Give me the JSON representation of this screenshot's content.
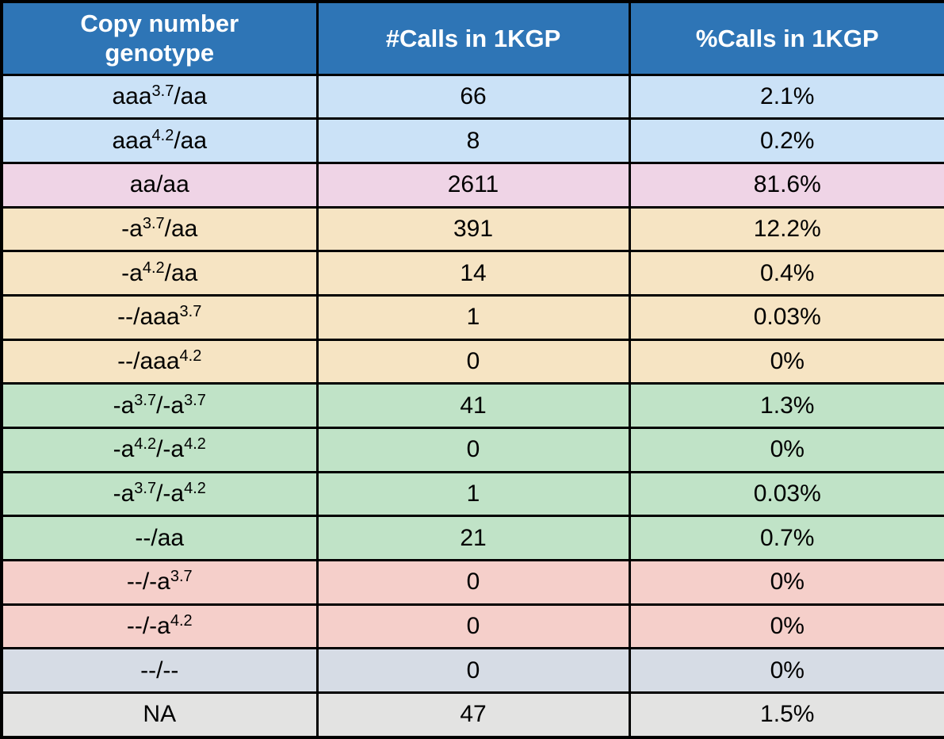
{
  "chart_data": {
    "type": "table",
    "columns": [
      "Copy number genotype",
      "#Calls in 1KGP",
      "%Calls in 1KGP"
    ],
    "rows": [
      {
        "genotype": [
          {
            "text": "aaa"
          },
          {
            "text": "3.7",
            "sup": true
          },
          {
            "text": "/aa"
          }
        ],
        "calls": 66,
        "pct": "2.1%",
        "row_color": "lightblue"
      },
      {
        "genotype": [
          {
            "text": "aaa"
          },
          {
            "text": "4.2",
            "sup": true
          },
          {
            "text": "/aa"
          }
        ],
        "calls": 8,
        "pct": "0.2%",
        "row_color": "lightblue"
      },
      {
        "genotype": [
          {
            "text": "aa/aa"
          }
        ],
        "calls": 2611,
        "pct": "81.6%",
        "row_color": "pink"
      },
      {
        "genotype": [
          {
            "text": "-a"
          },
          {
            "text": "3.7",
            "sup": true
          },
          {
            "text": "/aa"
          }
        ],
        "calls": 391,
        "pct": "12.2%",
        "row_color": "tan"
      },
      {
        "genotype": [
          {
            "text": "-a"
          },
          {
            "text": "4.2",
            "sup": true
          },
          {
            "text": "/aa"
          }
        ],
        "calls": 14,
        "pct": "0.4%",
        "row_color": "tan"
      },
      {
        "genotype": [
          {
            "text": "--/aaa"
          },
          {
            "text": "3.7",
            "sup": true
          }
        ],
        "calls": 1,
        "pct": "0.03%",
        "row_color": "tan"
      },
      {
        "genotype": [
          {
            "text": "--/aaa"
          },
          {
            "text": "4.2",
            "sup": true
          }
        ],
        "calls": 0,
        "pct": "0%",
        "row_color": "tan"
      },
      {
        "genotype": [
          {
            "text": "-a"
          },
          {
            "text": "3.7",
            "sup": true
          },
          {
            "text": "/-a"
          },
          {
            "text": "3.7",
            "sup": true
          }
        ],
        "calls": 41,
        "pct": "1.3%",
        "row_color": "green"
      },
      {
        "genotype": [
          {
            "text": "-a"
          },
          {
            "text": "4.2",
            "sup": true
          },
          {
            "text": "/-a"
          },
          {
            "text": "4.2",
            "sup": true
          }
        ],
        "calls": 0,
        "pct": "0%",
        "row_color": "green"
      },
      {
        "genotype": [
          {
            "text": "-a"
          },
          {
            "text": "3.7",
            "sup": true
          },
          {
            "text": "/-a"
          },
          {
            "text": "4.2",
            "sup": true
          }
        ],
        "calls": 1,
        "pct": "0.03%",
        "row_color": "green"
      },
      {
        "genotype": [
          {
            "text": "--/aa"
          }
        ],
        "calls": 21,
        "pct": "0.7%",
        "row_color": "green"
      },
      {
        "genotype": [
          {
            "text": "--/-a"
          },
          {
            "text": "3.7",
            "sup": true
          }
        ],
        "calls": 0,
        "pct": "0%",
        "row_color": "red"
      },
      {
        "genotype": [
          {
            "text": "--/-a"
          },
          {
            "text": "4.2",
            "sup": true
          }
        ],
        "calls": 0,
        "pct": "0%",
        "row_color": "red"
      },
      {
        "genotype": [
          {
            "text": "--/--"
          }
        ],
        "calls": 0,
        "pct": "0%",
        "row_color": "bluegray"
      },
      {
        "genotype": [
          {
            "text": "NA"
          }
        ],
        "calls": 47,
        "pct": "1.5%",
        "row_color": "gray"
      }
    ]
  },
  "colors": {
    "header_bg": "#2E75B6",
    "header_text": "#FFFFFF",
    "border": "#000000",
    "lightblue": "#CBE2F7",
    "pink": "#EFD4E6",
    "tan": "#F6E4C3",
    "green": "#C0E3C7",
    "red": "#F5CFCA",
    "bluegray": "#D6DCE5",
    "gray": "#E3E3E2"
  }
}
